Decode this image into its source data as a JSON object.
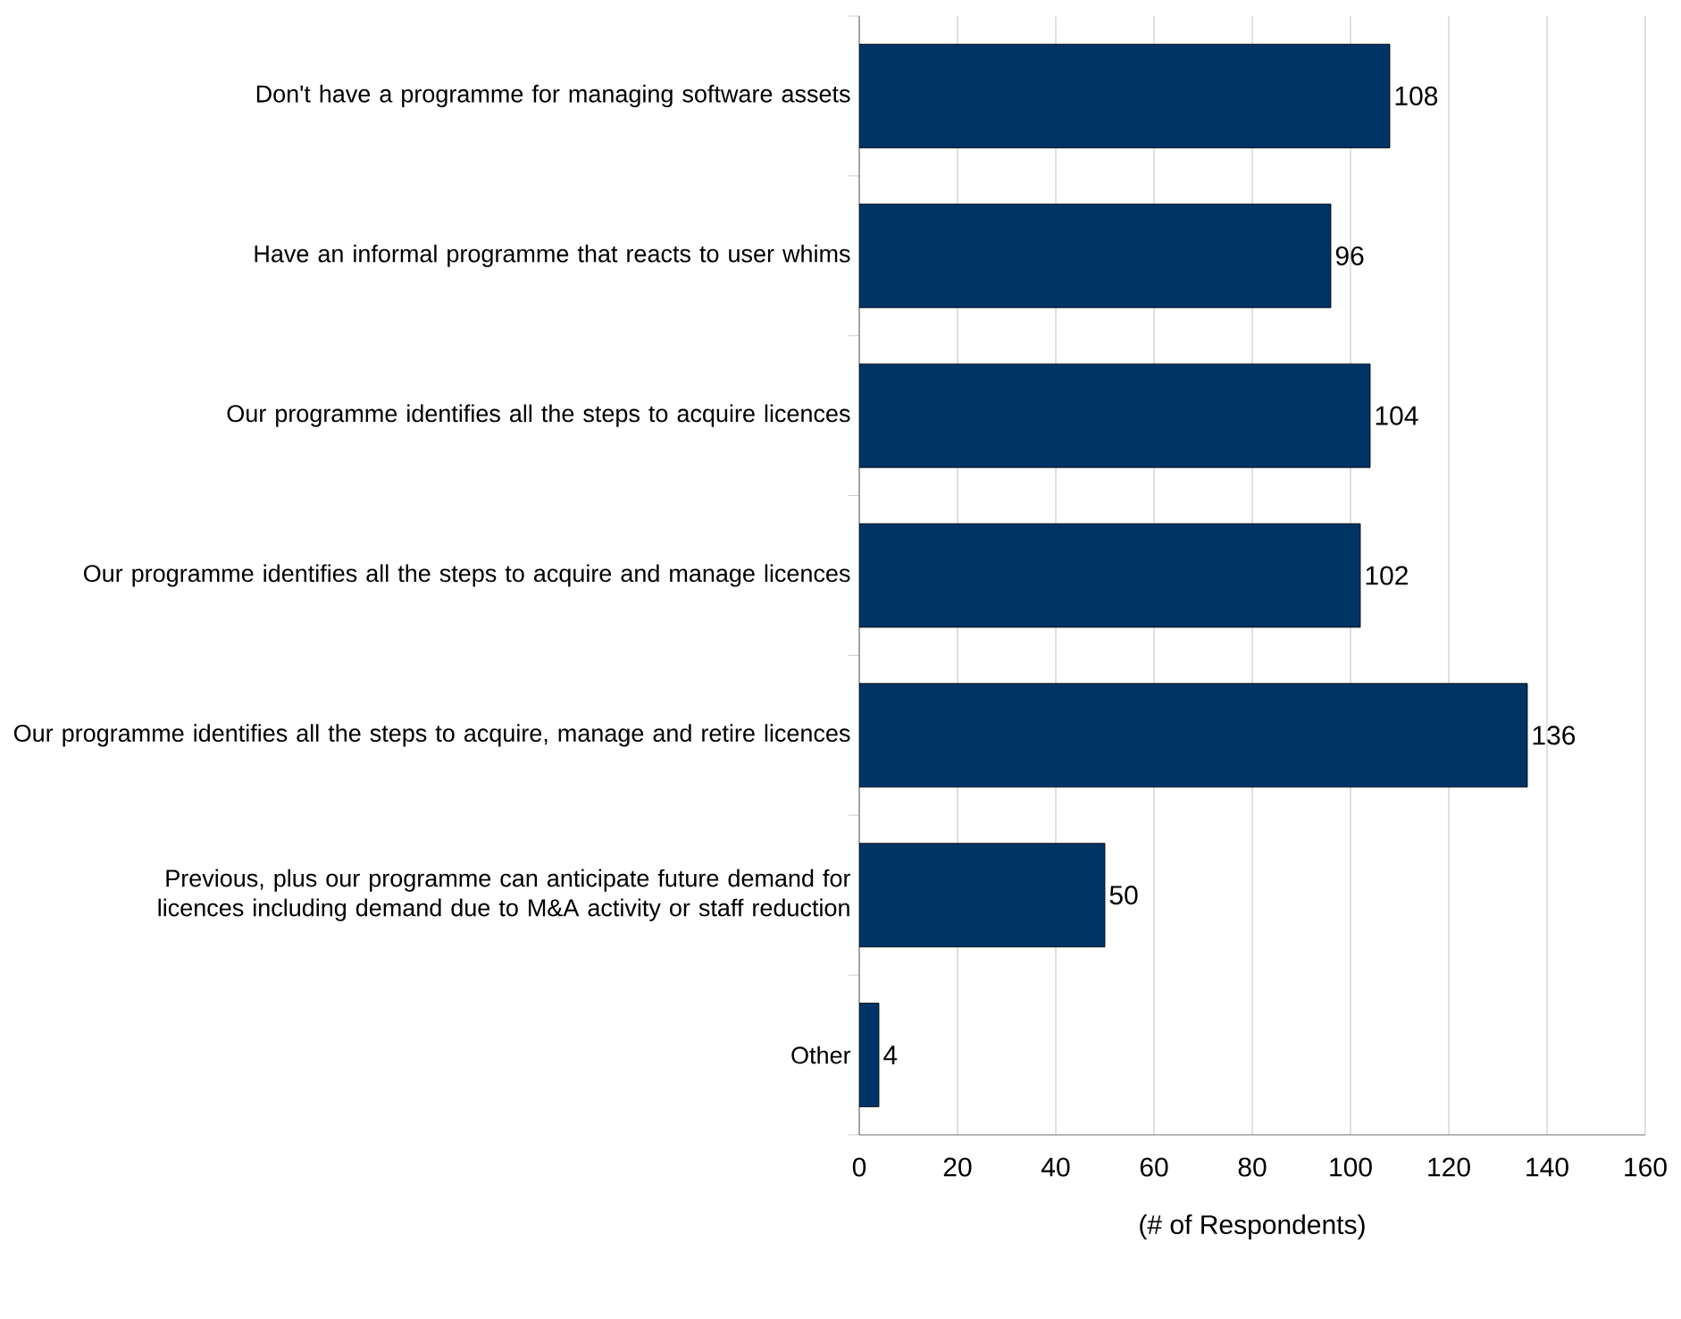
{
  "chart_data": {
    "type": "bar",
    "orientation": "horizontal",
    "categories": [
      "Don't have a programme for managing software assets",
      "Have an informal programme that reacts to user whims",
      "Our programme identifies all the steps to acquire licences",
      "Our programme identifies all the steps to acquire and manage licences",
      "Our programme identifies all the steps to acquire, manage and retire licences",
      "Previous, plus our programme can anticipate future demand for licences including demand due to M&A activity or staff reduction",
      "Other"
    ],
    "values": [
      108,
      96,
      104,
      102,
      136,
      50,
      4
    ],
    "color": "#003366",
    "xlabel": "(# of Respondents)",
    "xlim": [
      0,
      160
    ],
    "xticks": [
      0,
      20,
      40,
      60,
      80,
      100,
      120,
      140,
      160
    ],
    "grid": "x",
    "data_labels": true
  }
}
